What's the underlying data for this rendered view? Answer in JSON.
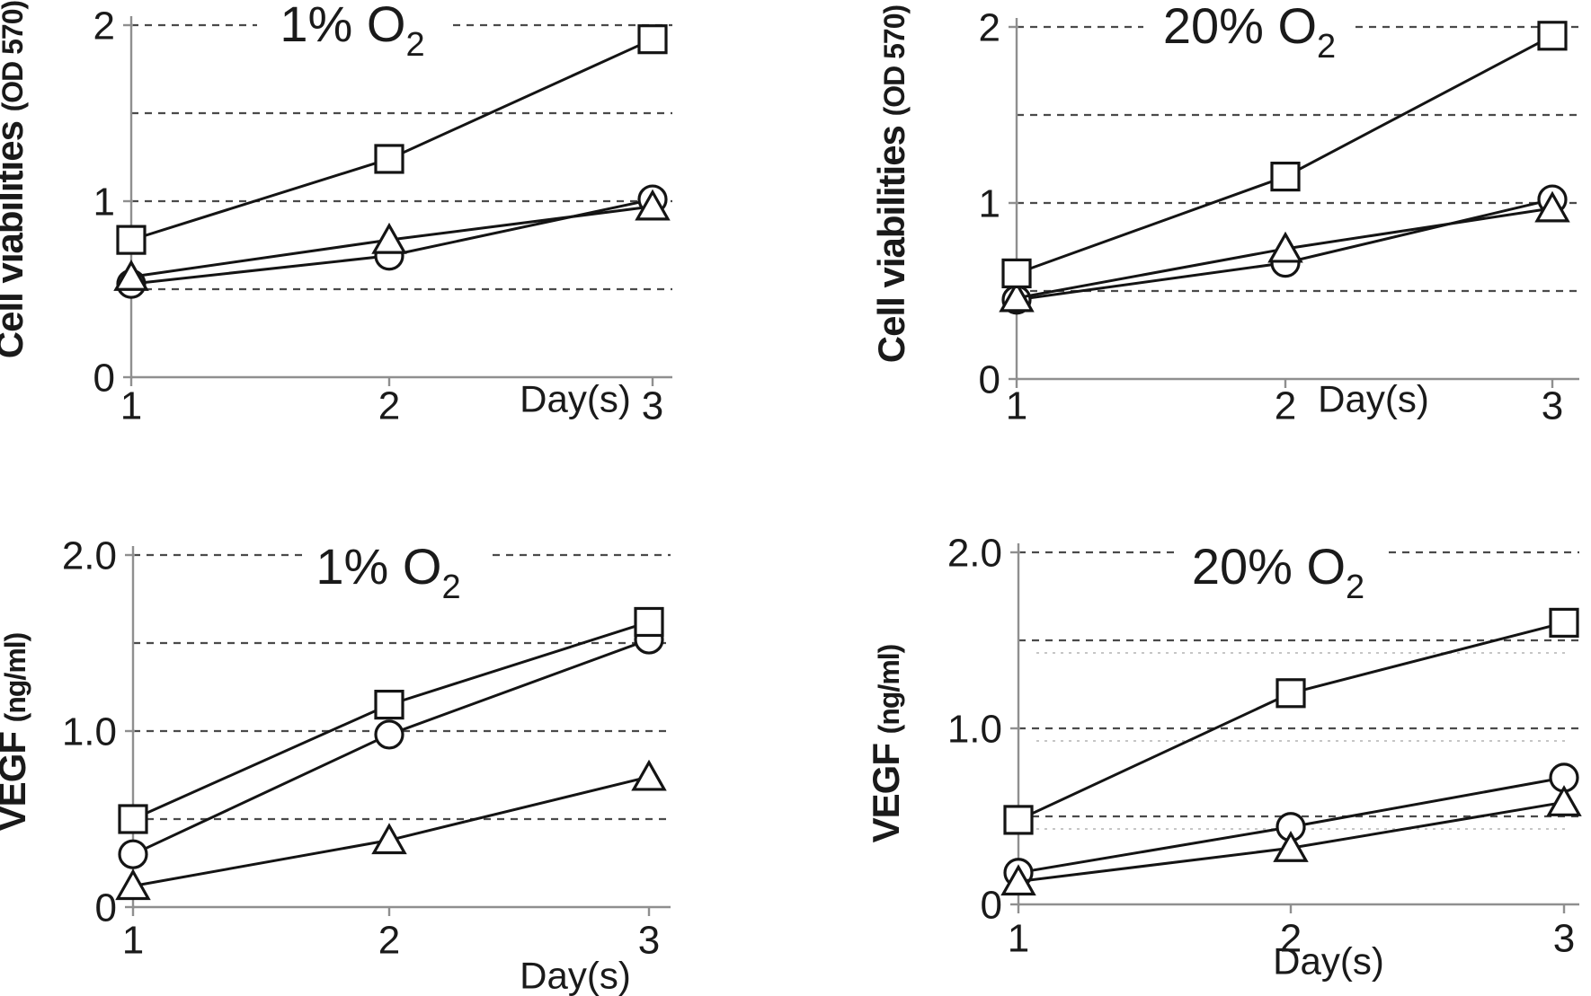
{
  "figure": {
    "description": "Four-panel line chart figure: cell viabilities and VEGF secretion at 1% and 20% oxygen over 3 days",
    "colors": {
      "background": "#ffffff",
      "line": "#141414",
      "grid": "#4a4a4a",
      "ghost_grid": "#c6c6c6",
      "axis": "#8f8f8f",
      "text": "#1a1a1a",
      "marker_fill": "#ffffff"
    }
  },
  "chart_data": [
    {
      "type": "line",
      "panel": "top-left",
      "title": "1% O2",
      "title_base": "1% O",
      "title_subscript": "2",
      "xlabel": "Day(s)",
      "ylabel": "Cell viabilities (OD 570)",
      "ylabel_main": "Cell viabilities",
      "ylabel_unit": "(OD 570)",
      "x": [
        1,
        2,
        3
      ],
      "xtick_labels": [
        "1",
        "2",
        "3"
      ],
      "ytick_values": [
        2,
        1,
        0
      ],
      "ytick_labels": [
        "2",
        "1",
        "0"
      ],
      "gridline_values": [
        2,
        1.5,
        1,
        0.5
      ],
      "ylim": [
        0,
        2.05
      ],
      "grid": "dashed horizontal",
      "legend": "none",
      "series": [
        {
          "name": "circle",
          "marker": "circle",
          "values": [
            0.53,
            0.69,
            1.01
          ]
        },
        {
          "name": "triangle",
          "marker": "triangle",
          "values": [
            0.57,
            0.78,
            0.97
          ]
        },
        {
          "name": "square",
          "marker": "square",
          "values": [
            0.78,
            1.24,
            1.92
          ]
        }
      ]
    },
    {
      "type": "line",
      "panel": "top-right",
      "title": "20% O2",
      "title_base": "20% O",
      "title_subscript": "2",
      "xlabel": "Day(s)",
      "ylabel": "Cell viabilities (OD 570)",
      "ylabel_main": "Cell viabilities",
      "ylabel_unit": "(OD 570)",
      "x": [
        1,
        2,
        3
      ],
      "xtick_labels": [
        "1",
        "2",
        "3"
      ],
      "ytick_values": [
        2,
        1,
        0
      ],
      "ytick_labels": [
        "2",
        "1",
        "0"
      ],
      "gridline_values": [
        2,
        1.5,
        1,
        0.5
      ],
      "ylim": [
        0,
        2.05
      ],
      "grid": "dashed horizontal",
      "legend": "none",
      "series": [
        {
          "name": "circle",
          "marker": "circle",
          "values": [
            0.45,
            0.66,
            1.02
          ]
        },
        {
          "name": "triangle",
          "marker": "triangle",
          "values": [
            0.46,
            0.74,
            0.97
          ]
        },
        {
          "name": "square",
          "marker": "square",
          "values": [
            0.6,
            1.15,
            1.95
          ]
        }
      ]
    },
    {
      "type": "line",
      "panel": "bottom-left",
      "title": "1% O2",
      "title_base": "1% O",
      "title_subscript": "2",
      "xlabel": "Day(s)",
      "ylabel": "VEGF (ng/ml)",
      "ylabel_main": "VEGF",
      "ylabel_unit": "(ng/ml)",
      "x": [
        1,
        2,
        3
      ],
      "xtick_labels": [
        "1",
        "2",
        "3"
      ],
      "ytick_values": [
        2,
        1,
        0
      ],
      "ytick_labels": [
        "2.0",
        "1.0",
        "0"
      ],
      "gridline_values": [
        2,
        1.5,
        1,
        0.5
      ],
      "ylim": [
        0,
        2.05
      ],
      "grid": "dashed horizontal",
      "legend": "none",
      "series": [
        {
          "name": "circle",
          "marker": "circle",
          "values": [
            0.3,
            0.98,
            1.52
          ]
        },
        {
          "name": "triangle",
          "marker": "triangle",
          "values": [
            0.12,
            0.38,
            0.74
          ]
        },
        {
          "name": "square",
          "marker": "square",
          "values": [
            0.5,
            1.15,
            1.62
          ]
        }
      ]
    },
    {
      "type": "line",
      "panel": "bottom-right",
      "title": "20% O2",
      "title_base": "20% O",
      "title_subscript": "2",
      "xlabel": "Day(s)",
      "ylabel": "VEGF (ng/ml)",
      "ylabel_main": "VEGF",
      "ylabel_unit": "(ng/ml)",
      "x": [
        1,
        2,
        3
      ],
      "xtick_labels": [
        "1",
        "2",
        "3"
      ],
      "ytick_values": [
        2,
        1,
        0
      ],
      "ytick_labels": [
        "2.0",
        "1.0",
        "0"
      ],
      "gridline_values": [
        2,
        1.5,
        1,
        0.5
      ],
      "ylim": [
        0,
        2.05
      ],
      "grid": "dashed horizontal",
      "legend": "none",
      "series": [
        {
          "name": "circle",
          "marker": "circle",
          "values": [
            0.18,
            0.44,
            0.72
          ]
        },
        {
          "name": "triangle",
          "marker": "triangle",
          "values": [
            0.13,
            0.32,
            0.58
          ]
        },
        {
          "name": "square",
          "marker": "square",
          "values": [
            0.48,
            1.2,
            1.6
          ]
        }
      ]
    }
  ]
}
